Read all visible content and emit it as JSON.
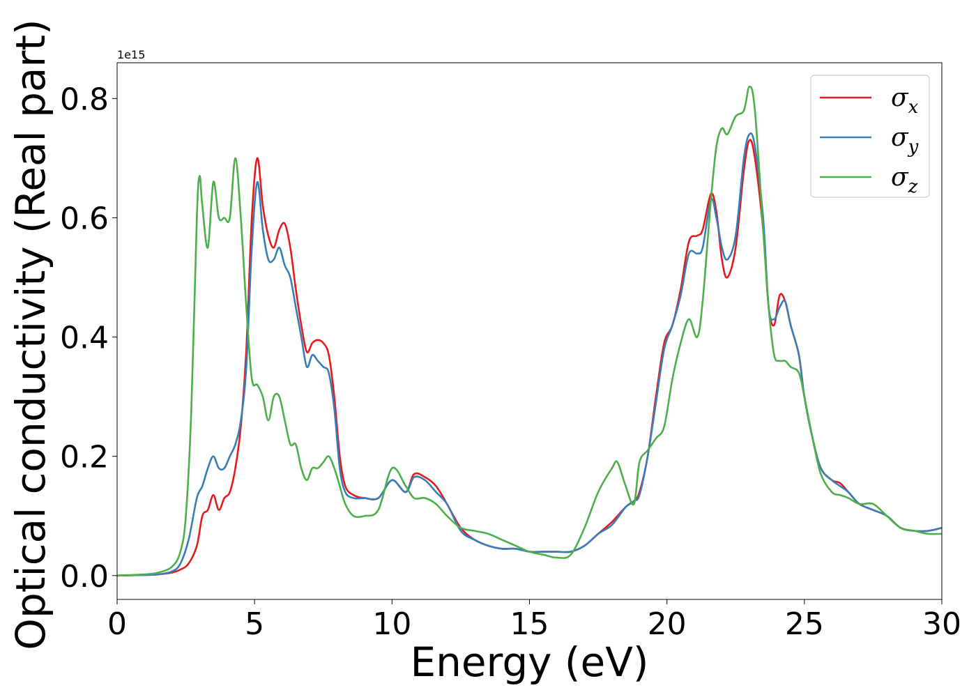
{
  "chart_data": {
    "type": "line",
    "title": "",
    "xlabel": "Energy (eV)",
    "ylabel": "Optical conductivity (Real part)",
    "y_offset_label": "1e15",
    "xlim": [
      0,
      30
    ],
    "ylim": [
      -0.04,
      0.86
    ],
    "xticks": [
      0,
      5,
      10,
      15,
      20,
      25,
      30
    ],
    "yticks": [
      0.0,
      0.2,
      0.4,
      0.6,
      0.8
    ],
    "xtick_labels": [
      "0",
      "5",
      "10",
      "15",
      "20",
      "25",
      "30"
    ],
    "ytick_labels": [
      "0.0",
      "0.2",
      "0.4",
      "0.6",
      "0.8"
    ],
    "grid": false,
    "legend_position": "top-right",
    "series": [
      {
        "name": "σx",
        "symbol": "σ",
        "subscript": "x",
        "color": "#e41a1c",
        "x": [
          0,
          1,
          1.5,
          2,
          2.3,
          2.6,
          2.9,
          3.1,
          3.3,
          3.5,
          3.7,
          3.9,
          4.1,
          4.3,
          4.5,
          4.7,
          4.9,
          5.1,
          5.3,
          5.5,
          5.7,
          5.9,
          6.1,
          6.3,
          6.5,
          6.7,
          6.9,
          7.1,
          7.3,
          7.5,
          7.7,
          7.9,
          8.1,
          8.3,
          8.6,
          9,
          9.5,
          10,
          10.5,
          10.8,
          11.2,
          11.6,
          12,
          12.5,
          13,
          13.5,
          14,
          14.5,
          15,
          15.5,
          16,
          16.5,
          17,
          17.5,
          18,
          18.5,
          18.8,
          19,
          19.3,
          19.6,
          19.9,
          20.2,
          20.5,
          20.8,
          21.1,
          21.3,
          21.6,
          21.8,
          22,
          22.2,
          22.5,
          22.8,
          23,
          23.2,
          23.5,
          23.7,
          23.9,
          24.1,
          24.3,
          24.5,
          24.8,
          25,
          25.3,
          25.6,
          26,
          26.3,
          26.6,
          27,
          27.5,
          28,
          28.5,
          29,
          29.5,
          30
        ],
        "values": [
          0.0,
          0.001,
          0.002,
          0.005,
          0.01,
          0.02,
          0.05,
          0.1,
          0.11,
          0.135,
          0.11,
          0.13,
          0.14,
          0.18,
          0.25,
          0.38,
          0.6,
          0.7,
          0.62,
          0.57,
          0.55,
          0.58,
          0.59,
          0.55,
          0.48,
          0.42,
          0.375,
          0.39,
          0.395,
          0.39,
          0.37,
          0.3,
          0.2,
          0.15,
          0.135,
          0.13,
          0.13,
          0.16,
          0.14,
          0.17,
          0.165,
          0.15,
          0.12,
          0.08,
          0.06,
          0.05,
          0.045,
          0.045,
          0.04,
          0.04,
          0.04,
          0.04,
          0.05,
          0.07,
          0.09,
          0.115,
          0.125,
          0.14,
          0.2,
          0.3,
          0.39,
          0.42,
          0.48,
          0.56,
          0.57,
          0.58,
          0.64,
          0.61,
          0.53,
          0.5,
          0.55,
          0.68,
          0.73,
          0.7,
          0.58,
          0.45,
          0.42,
          0.47,
          0.46,
          0.42,
          0.37,
          0.3,
          0.23,
          0.18,
          0.16,
          0.155,
          0.14,
          0.12,
          0.11,
          0.1,
          0.08,
          0.075,
          0.075,
          0.08
        ]
      },
      {
        "name": "σy",
        "symbol": "σ",
        "subscript": "y",
        "color": "#377eb8",
        "x": [
          0,
          1,
          1.5,
          2,
          2.3,
          2.6,
          2.9,
          3.1,
          3.3,
          3.5,
          3.7,
          3.9,
          4.1,
          4.3,
          4.5,
          4.7,
          4.9,
          5.1,
          5.3,
          5.5,
          5.7,
          5.9,
          6.1,
          6.3,
          6.5,
          6.7,
          6.9,
          7.1,
          7.3,
          7.5,
          7.7,
          7.9,
          8.1,
          8.3,
          8.6,
          9,
          9.5,
          10,
          10.5,
          10.8,
          11.2,
          11.6,
          12,
          12.5,
          13,
          13.5,
          14,
          14.5,
          15,
          15.5,
          16,
          16.5,
          17,
          17.5,
          18,
          18.5,
          18.8,
          19,
          19.3,
          19.6,
          19.9,
          20.2,
          20.5,
          20.8,
          21.1,
          21.3,
          21.6,
          21.8,
          22,
          22.2,
          22.5,
          22.8,
          23,
          23.2,
          23.5,
          23.7,
          23.9,
          24.1,
          24.3,
          24.5,
          24.8,
          25,
          25.3,
          25.6,
          26,
          26.3,
          26.6,
          27,
          27.5,
          28,
          28.5,
          29,
          29.5,
          30
        ],
        "values": [
          0.0,
          0.001,
          0.002,
          0.007,
          0.02,
          0.06,
          0.13,
          0.15,
          0.18,
          0.2,
          0.18,
          0.18,
          0.2,
          0.22,
          0.26,
          0.35,
          0.55,
          0.66,
          0.58,
          0.53,
          0.53,
          0.55,
          0.52,
          0.5,
          0.45,
          0.4,
          0.35,
          0.37,
          0.36,
          0.35,
          0.34,
          0.28,
          0.18,
          0.14,
          0.13,
          0.13,
          0.13,
          0.16,
          0.14,
          0.165,
          0.16,
          0.14,
          0.12,
          0.075,
          0.06,
          0.05,
          0.045,
          0.045,
          0.04,
          0.04,
          0.04,
          0.04,
          0.05,
          0.07,
          0.085,
          0.115,
          0.125,
          0.135,
          0.2,
          0.29,
          0.38,
          0.42,
          0.47,
          0.54,
          0.54,
          0.55,
          0.63,
          0.6,
          0.55,
          0.53,
          0.57,
          0.7,
          0.74,
          0.72,
          0.6,
          0.45,
          0.43,
          0.45,
          0.46,
          0.42,
          0.37,
          0.3,
          0.23,
          0.18,
          0.16,
          0.15,
          0.14,
          0.12,
          0.11,
          0.1,
          0.08,
          0.075,
          0.075,
          0.08
        ]
      },
      {
        "name": "σz",
        "symbol": "σ",
        "subscript": "z",
        "color": "#4daf4a",
        "x": [
          0,
          1,
          1.5,
          2,
          2.3,
          2.5,
          2.7,
          2.9,
          3.0,
          3.1,
          3.3,
          3.5,
          3.7,
          3.9,
          4.1,
          4.3,
          4.5,
          4.7,
          4.9,
          5.1,
          5.3,
          5.5,
          5.7,
          5.9,
          6.1,
          6.3,
          6.5,
          6.7,
          6.9,
          7.1,
          7.3,
          7.5,
          7.7,
          7.9,
          8.1,
          8.3,
          8.6,
          9,
          9.5,
          10,
          10.5,
          10.8,
          11.2,
          11.6,
          12,
          12.5,
          13,
          13.5,
          14,
          14.5,
          15,
          15.5,
          16,
          16.5,
          17,
          17.5,
          18,
          18.2,
          18.5,
          18.8,
          19,
          19.3,
          19.6,
          19.9,
          20.2,
          20.5,
          20.8,
          21.1,
          21.3,
          21.6,
          21.8,
          22,
          22.2,
          22.5,
          22.8,
          23,
          23.2,
          23.5,
          23.7,
          23.9,
          24.1,
          24.3,
          24.5,
          24.8,
          25,
          25.3,
          25.6,
          26,
          26.3,
          26.6,
          27,
          27.5,
          28,
          28.5,
          29,
          29.5,
          30
        ],
        "values": [
          0.0,
          0.002,
          0.005,
          0.015,
          0.04,
          0.1,
          0.28,
          0.6,
          0.67,
          0.62,
          0.55,
          0.66,
          0.6,
          0.6,
          0.6,
          0.7,
          0.6,
          0.45,
          0.33,
          0.32,
          0.3,
          0.26,
          0.3,
          0.3,
          0.26,
          0.22,
          0.22,
          0.18,
          0.16,
          0.18,
          0.18,
          0.19,
          0.2,
          0.18,
          0.15,
          0.12,
          0.1,
          0.1,
          0.11,
          0.18,
          0.15,
          0.13,
          0.13,
          0.12,
          0.1,
          0.08,
          0.075,
          0.07,
          0.06,
          0.05,
          0.04,
          0.035,
          0.03,
          0.035,
          0.08,
          0.14,
          0.18,
          0.19,
          0.15,
          0.12,
          0.19,
          0.21,
          0.23,
          0.25,
          0.33,
          0.39,
          0.43,
          0.4,
          0.46,
          0.63,
          0.72,
          0.75,
          0.74,
          0.77,
          0.78,
          0.82,
          0.78,
          0.58,
          0.45,
          0.37,
          0.36,
          0.36,
          0.35,
          0.34,
          0.3,
          0.23,
          0.17,
          0.14,
          0.135,
          0.13,
          0.12,
          0.12,
          0.1,
          0.08,
          0.075,
          0.07,
          0.07
        ]
      }
    ]
  }
}
